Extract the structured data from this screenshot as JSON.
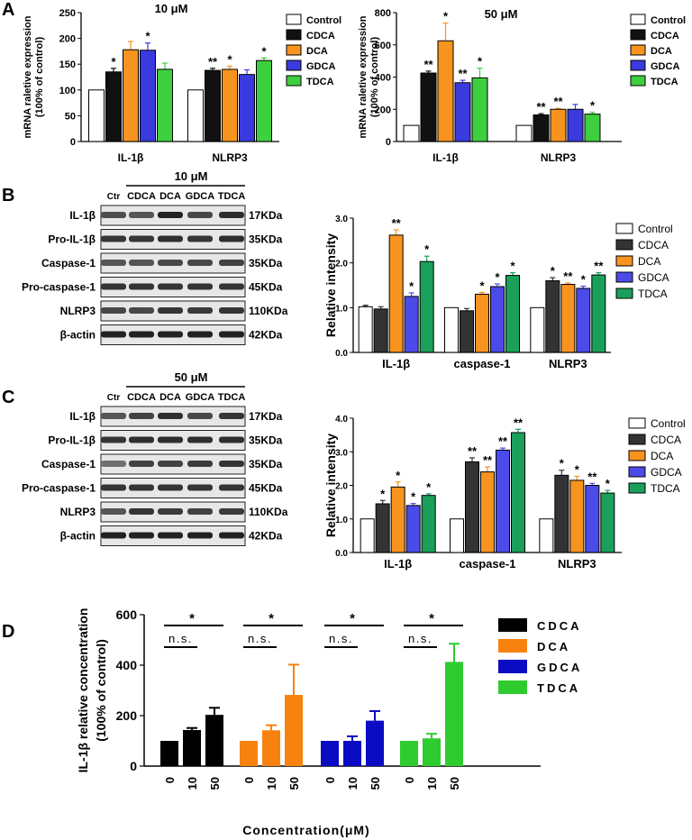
{
  "panels": {
    "A": "A",
    "B": "B",
    "C": "C",
    "D": "D"
  },
  "legend_cdca": [
    {
      "name": "Control",
      "color": "#ffffff"
    },
    {
      "name": "CDCA",
      "color": "#111111"
    },
    {
      "name": "DCA",
      "color": "#f7931e"
    },
    {
      "name": "GDCA",
      "color": "#3a3adf"
    },
    {
      "name": "TDCA",
      "color": "#3ecf3e"
    }
  ],
  "legend_BC": [
    {
      "name": "Control",
      "color": "#ffffff"
    },
    {
      "name": "CDCA",
      "color": "#333333"
    },
    {
      "name": "DCA",
      "color": "#f7931e"
    },
    {
      "name": "GDCA",
      "color": "#4b4bea"
    },
    {
      "name": "TDCA",
      "color": "#1aa05a"
    }
  ],
  "blots": {
    "lanes": [
      "Ctr",
      "CDCA",
      "DCA",
      "GDCA",
      "TDCA"
    ],
    "rows": [
      {
        "label": "IL-1β",
        "kda": "17KDa"
      },
      {
        "label": "Pro-IL-1β",
        "kda": "35KDa"
      },
      {
        "label": "Caspase-1",
        "kda": "35KDa"
      },
      {
        "label": "Pro-caspase-1",
        "kda": "45KDa"
      },
      {
        "label": "NLRP3",
        "kda": "110KDa"
      },
      {
        "label": "β-actin",
        "kda": "42KDa"
      }
    ],
    "B_conc": "10 μM",
    "C_conc": "50 μM"
  },
  "chart_data": [
    {
      "id": "A1",
      "type": "bar",
      "title": "10 μM",
      "ylabel": "mRNA raletive expression\n(100% of control)",
      "ylim": [
        0,
        250
      ],
      "yticks": [
        0,
        50,
        100,
        150,
        200,
        250
      ],
      "categories": [
        "IL-1β",
        "NLRP3"
      ],
      "series": [
        {
          "name": "Control",
          "values": [
            100,
            100
          ],
          "err": [
            0,
            0
          ],
          "sig": [
            "",
            ""
          ]
        },
        {
          "name": "CDCA",
          "values": [
            135,
            138
          ],
          "err": [
            7,
            4
          ],
          "sig": [
            "*",
            "**"
          ]
        },
        {
          "name": "DCA",
          "values": [
            178,
            140
          ],
          "err": [
            16,
            6
          ],
          "sig": [
            "",
            "*"
          ]
        },
        {
          "name": "GDCA",
          "values": [
            177,
            130
          ],
          "err": [
            14,
            9
          ],
          "sig": [
            "*",
            ""
          ]
        },
        {
          "name": "TDCA",
          "values": [
            140,
            157
          ],
          "err": [
            12,
            5
          ],
          "sig": [
            "",
            "*"
          ]
        }
      ]
    },
    {
      "id": "A2",
      "type": "bar",
      "title": "50 μM",
      "ylabel": "mRNA raletive expression\n(100% of control)",
      "ylim": [
        0,
        800
      ],
      "yticks": [
        0,
        200,
        400,
        600,
        800
      ],
      "categories": [
        "IL-1β",
        "NLRP3"
      ],
      "series": [
        {
          "name": "Control",
          "values": [
            100,
            100
          ],
          "err": [
            0,
            0
          ],
          "sig": [
            "",
            ""
          ]
        },
        {
          "name": "CDCA",
          "values": [
            425,
            165
          ],
          "err": [
            12,
            8
          ],
          "sig": [
            "**",
            "**"
          ]
        },
        {
          "name": "DCA",
          "values": [
            625,
            200
          ],
          "err": [
            110,
            6
          ],
          "sig": [
            "*",
            "**"
          ]
        },
        {
          "name": "GDCA",
          "values": [
            365,
            200
          ],
          "err": [
            15,
            30
          ],
          "sig": [
            "**",
            ""
          ]
        },
        {
          "name": "TDCA",
          "values": [
            395,
            170
          ],
          "err": [
            60,
            12
          ],
          "sig": [
            "*",
            "*"
          ]
        }
      ]
    },
    {
      "id": "B",
      "type": "bar",
      "title": "",
      "ylabel": "Relative intensity",
      "ylim": [
        0,
        3.0
      ],
      "yticks": [
        0.0,
        1.0,
        2.0,
        3.0
      ],
      "categories": [
        "IL-1β",
        "caspase-1",
        "NLRP3"
      ],
      "series": [
        {
          "name": "Control",
          "values": [
            1.02,
            1.0,
            1.0
          ],
          "err": [
            0.03,
            0,
            0
          ],
          "sig": [
            "",
            "",
            ""
          ]
        },
        {
          "name": "CDCA",
          "values": [
            0.97,
            0.93,
            1.6
          ],
          "err": [
            0.05,
            0.05,
            0.07
          ],
          "sig": [
            "",
            "",
            "*"
          ]
        },
        {
          "name": "DCA",
          "values": [
            2.62,
            1.3,
            1.52
          ],
          "err": [
            0.12,
            0.04,
            0.03
          ],
          "sig": [
            "**",
            "*",
            "**"
          ]
        },
        {
          "name": "GDCA",
          "values": [
            1.25,
            1.47,
            1.43
          ],
          "err": [
            0.08,
            0.06,
            0.05
          ],
          "sig": [
            "*",
            "*",
            "*"
          ]
        },
        {
          "name": "TDCA",
          "values": [
            2.03,
            1.72,
            1.73
          ],
          "err": [
            0.12,
            0.06,
            0.05
          ],
          "sig": [
            "*",
            "*",
            "**"
          ]
        }
      ]
    },
    {
      "id": "C",
      "type": "bar",
      "title": "",
      "ylabel": "Relative intensity",
      "ylim": [
        0,
        4.0
      ],
      "yticks": [
        0.0,
        1.0,
        2.0,
        3.0,
        4.0
      ],
      "categories": [
        "IL-1β",
        "caspase-1",
        "NLRP3"
      ],
      "series": [
        {
          "name": "Control",
          "values": [
            1.0,
            1.0,
            1.0
          ],
          "err": [
            0,
            0,
            0
          ],
          "sig": [
            "",
            "",
            ""
          ]
        },
        {
          "name": "CDCA",
          "values": [
            1.45,
            2.7,
            2.3
          ],
          "err": [
            0.1,
            0.12,
            0.15
          ],
          "sig": [
            "*",
            "**",
            "*"
          ]
        },
        {
          "name": "DCA",
          "values": [
            1.95,
            2.4,
            2.15
          ],
          "err": [
            0.15,
            0.15,
            0.12
          ],
          "sig": [
            "*",
            "**",
            "*"
          ]
        },
        {
          "name": "GDCA",
          "values": [
            1.4,
            3.05,
            2.0
          ],
          "err": [
            0.06,
            0.06,
            0.06
          ],
          "sig": [
            "*",
            "**",
            "**"
          ]
        },
        {
          "name": "TDCA",
          "values": [
            1.7,
            3.57,
            1.77
          ],
          "err": [
            0.05,
            0.1,
            0.08
          ],
          "sig": [
            "*",
            "**",
            "*"
          ]
        }
      ]
    },
    {
      "id": "D",
      "type": "bar",
      "title": "",
      "ylabel": "IL-1β  relative concentration\n(100% of control)",
      "xlabel": "Concentration(μM)",
      "ylim": [
        0,
        600
      ],
      "yticks": [
        0,
        200,
        400,
        600
      ],
      "tick_labels": [
        "0",
        "10",
        "50"
      ],
      "groups": [
        {
          "name": "CDCA",
          "color": "#000000",
          "values": [
            100,
            143,
            203
          ],
          "err": [
            0,
            8,
            28
          ]
        },
        {
          "name": "DCA",
          "color": "#f7820f",
          "values": [
            100,
            142,
            282
          ],
          "err": [
            0,
            20,
            120
          ]
        },
        {
          "name": "GDCA",
          "color": "#0b0bc4",
          "values": [
            100,
            100,
            180
          ],
          "err": [
            0,
            18,
            38
          ]
        },
        {
          "name": "TDCA",
          "color": "#2ecc2e",
          "values": [
            100,
            110,
            413
          ],
          "err": [
            0,
            18,
            72
          ]
        }
      ],
      "annotations": {
        "star": "*",
        "ns": "n.s."
      }
    }
  ]
}
